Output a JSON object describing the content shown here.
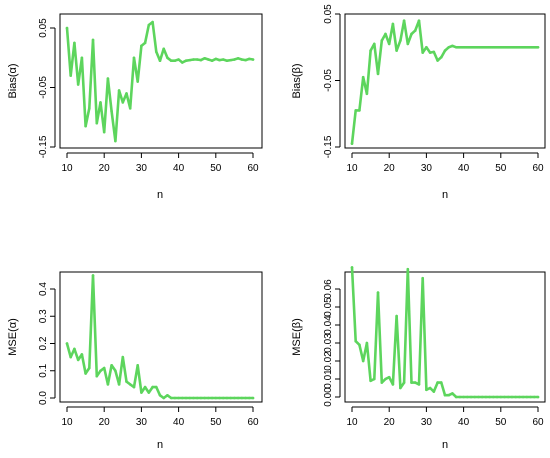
{
  "chart_data": [
    {
      "type": "line",
      "xlabel": "n",
      "ylabel": "Bias(α)",
      "xlim": [
        10,
        60
      ],
      "ylim": [
        -0.15,
        0.05
      ],
      "xticks": [
        "10",
        "20",
        "30",
        "40",
        "50",
        "60"
      ],
      "yticks": [
        "-0.15",
        "-0.05",
        "0.05"
      ],
      "ytick_values": [
        -0.15,
        -0.05,
        0.05
      ],
      "color": "#5dd55d",
      "series": [
        {
          "x": [
            10,
            11,
            12,
            13,
            14,
            15,
            16,
            17,
            18,
            19,
            20,
            21,
            22,
            23,
            24,
            25,
            26,
            27,
            28,
            29,
            30,
            31,
            32,
            33,
            34,
            35,
            36,
            37,
            38,
            39,
            40,
            41,
            42,
            43,
            44,
            45,
            46,
            47,
            48,
            49,
            50,
            51,
            52,
            53,
            54,
            55,
            56,
            57,
            58,
            59,
            60
          ],
          "values": [
            0.05,
            -0.03,
            0.025,
            -0.045,
            0.0,
            -0.115,
            -0.085,
            0.03,
            -0.11,
            -0.075,
            -0.125,
            -0.035,
            -0.09,
            -0.14,
            -0.055,
            -0.075,
            -0.06,
            -0.085,
            0.0,
            -0.04,
            0.02,
            0.025,
            0.055,
            0.06,
            0.01,
            -0.005,
            0.015,
            0.0,
            -0.005,
            -0.005,
            -0.003,
            -0.008,
            -0.005,
            -0.004,
            -0.003,
            -0.003,
            -0.004,
            -0.001,
            -0.003,
            -0.005,
            -0.002,
            -0.004,
            -0.003,
            -0.005,
            -0.004,
            -0.003,
            -0.001,
            -0.003,
            -0.004,
            -0.002,
            -0.003
          ]
        }
      ]
    },
    {
      "type": "line",
      "xlabel": "n",
      "ylabel": "Bias(β)",
      "xlim": [
        10,
        60
      ],
      "ylim": [
        -0.15,
        0.05
      ],
      "xticks": [
        "10",
        "20",
        "30",
        "40",
        "50",
        "60"
      ],
      "yticks": [
        "-0.15",
        "-0.05",
        "0.05"
      ],
      "ytick_values": [
        -0.15,
        -0.05,
        0.05
      ],
      "color": "#5dd55d",
      "series": [
        {
          "x": [
            10,
            11,
            12,
            13,
            14,
            15,
            16,
            17,
            18,
            19,
            20,
            21,
            22,
            23,
            24,
            25,
            26,
            27,
            28,
            29,
            30,
            31,
            32,
            33,
            34,
            35,
            36,
            37,
            38,
            39,
            40,
            41,
            42,
            43,
            44,
            45,
            46,
            47,
            48,
            49,
            50,
            51,
            52,
            53,
            54,
            55,
            56,
            57,
            58,
            59,
            60
          ],
          "values": [
            -0.145,
            -0.095,
            -0.095,
            -0.045,
            -0.07,
            -0.005,
            0.005,
            -0.04,
            0.01,
            0.02,
            0.005,
            0.035,
            -0.005,
            0.01,
            0.04,
            0.005,
            0.02,
            0.025,
            0.04,
            -0.008,
            0.0,
            -0.008,
            -0.007,
            -0.02,
            -0.015,
            -0.005,
            0.0,
            0.002,
            0.0,
            0.0,
            0.0,
            0.0,
            0.0,
            0.0,
            0.0,
            0.0,
            0.0,
            0.0,
            0.0,
            0.0,
            0.0,
            0.0,
            0.0,
            0.0,
            0.0,
            0.0,
            0.0,
            0.0,
            0.0,
            0.0,
            0.0
          ]
        }
      ]
    },
    {
      "type": "line",
      "xlabel": "n",
      "ylabel": "MSE(α)",
      "xlim": [
        10,
        60
      ],
      "ylim": [
        0,
        0.45
      ],
      "xticks": [
        "10",
        "20",
        "30",
        "40",
        "50",
        "60"
      ],
      "yticks": [
        "0.0",
        "0.1",
        "0.2",
        "0.3",
        "0.4"
      ],
      "ytick_values": [
        0,
        0.1,
        0.2,
        0.3,
        0.4
      ],
      "color": "#5dd55d",
      "series": [
        {
          "x": [
            10,
            11,
            12,
            13,
            14,
            15,
            16,
            17,
            18,
            19,
            20,
            21,
            22,
            23,
            24,
            25,
            26,
            27,
            28,
            29,
            30,
            31,
            32,
            33,
            34,
            35,
            36,
            37,
            38,
            39,
            40,
            41,
            42,
            43,
            44,
            45,
            46,
            47,
            48,
            49,
            50,
            51,
            52,
            53,
            54,
            55,
            56,
            57,
            58,
            59,
            60
          ],
          "values": [
            0.2,
            0.15,
            0.18,
            0.14,
            0.16,
            0.09,
            0.11,
            0.45,
            0.08,
            0.1,
            0.11,
            0.05,
            0.12,
            0.1,
            0.05,
            0.15,
            0.06,
            0.05,
            0.04,
            0.12,
            0.02,
            0.04,
            0.02,
            0.04,
            0.04,
            0.01,
            0.0,
            0.01,
            0.0,
            0.0,
            0.0,
            0.0,
            0.0,
            0.0,
            0.0,
            0.0,
            0.0,
            0.0,
            0.0,
            0.0,
            0.0,
            0.0,
            0.0,
            0.0,
            0.0,
            0.0,
            0.0,
            0.0,
            0.0,
            0.0,
            0.0
          ]
        }
      ]
    },
    {
      "type": "line",
      "xlabel": "n",
      "ylabel": "MSE(β)",
      "xlim": [
        10,
        60
      ],
      "ylim": [
        0,
        0.07
      ],
      "xticks": [
        "10",
        "20",
        "30",
        "40",
        "50",
        "60"
      ],
      "yticks": [
        "0.00",
        "0.01",
        "0.02",
        "0.03",
        "0.04",
        "0.05",
        "0.06"
      ],
      "ytick_values": [
        0,
        0.01,
        0.02,
        0.03,
        0.04,
        0.05,
        0.06
      ],
      "color": "#5dd55d",
      "series": [
        {
          "x": [
            10,
            11,
            12,
            13,
            14,
            15,
            16,
            17,
            18,
            19,
            20,
            21,
            22,
            23,
            24,
            25,
            26,
            27,
            28,
            29,
            30,
            31,
            32,
            33,
            34,
            35,
            36,
            37,
            38,
            39,
            40,
            41,
            42,
            43,
            44,
            45,
            46,
            47,
            48,
            49,
            50,
            51,
            52,
            53,
            54,
            55,
            56,
            57,
            58,
            59,
            60
          ],
          "values": [
            0.072,
            0.031,
            0.029,
            0.02,
            0.03,
            0.009,
            0.01,
            0.058,
            0.008,
            0.01,
            0.011,
            0.007,
            0.045,
            0.005,
            0.008,
            0.071,
            0.008,
            0.008,
            0.007,
            0.066,
            0.004,
            0.005,
            0.003,
            0.008,
            0.008,
            0.001,
            0.001,
            0.002,
            0.0,
            0.0,
            0.0,
            0.0,
            0.0,
            0.0,
            0.0,
            0.0,
            0.0,
            0.0,
            0.0,
            0.0,
            0.0,
            0.0,
            0.0,
            0.0,
            0.0,
            0.0,
            0.0,
            0.0,
            0.0,
            0.0,
            0.0
          ]
        }
      ]
    }
  ]
}
